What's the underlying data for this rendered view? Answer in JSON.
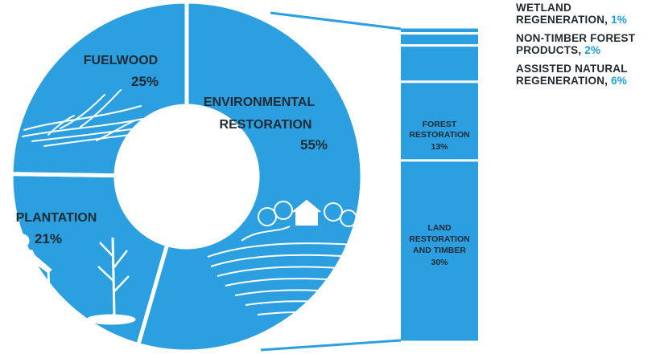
{
  "chart_data": [
    {
      "type": "pie",
      "style": "donut",
      "slices": [
        {
          "label": "ENVIRONMENTAL RESTORATION",
          "value": 55,
          "value_label": "55%"
        },
        {
          "label": "PLANTATION",
          "value": 21,
          "value_label": "21%"
        },
        {
          "label": "FUELWOOD",
          "value": 25,
          "value_label": "25%"
        }
      ]
    },
    {
      "type": "bar",
      "style": "stacked-column",
      "segments": [
        {
          "label": "LAND RESTORATION AND TIMBER",
          "value": 30,
          "value_label": "30%"
        },
        {
          "label": "FOREST RESTORATION",
          "value": 13,
          "value_label": "13%"
        },
        {
          "label": "ASSISTED NATURAL REGENERATION",
          "value": 6,
          "value_label": "6%"
        },
        {
          "label": "NON-TIMBER FOREST PRODUCTS",
          "value": 2,
          "value_label": "2%"
        },
        {
          "label": "WETLAND REGENERATION",
          "value": 1,
          "value_label": "1%"
        }
      ]
    }
  ],
  "legend": [
    {
      "name": "WETLAND REGENERATION",
      "pct": "1%"
    },
    {
      "name": "NON-TIMBER FOREST PRODUCTS",
      "pct": "2%"
    },
    {
      "name": "ASSISTED NATURAL REGENERATION",
      "pct": "6%"
    }
  ],
  "colors": {
    "slice": "#2b9fe0",
    "text": "#1f2a33",
    "accent": "#1a9fd6",
    "divider": "#ffffff"
  },
  "icons": [
    "fuelwood-bundle-icon",
    "landscape-farm-icon",
    "planting-person-icon"
  ]
}
